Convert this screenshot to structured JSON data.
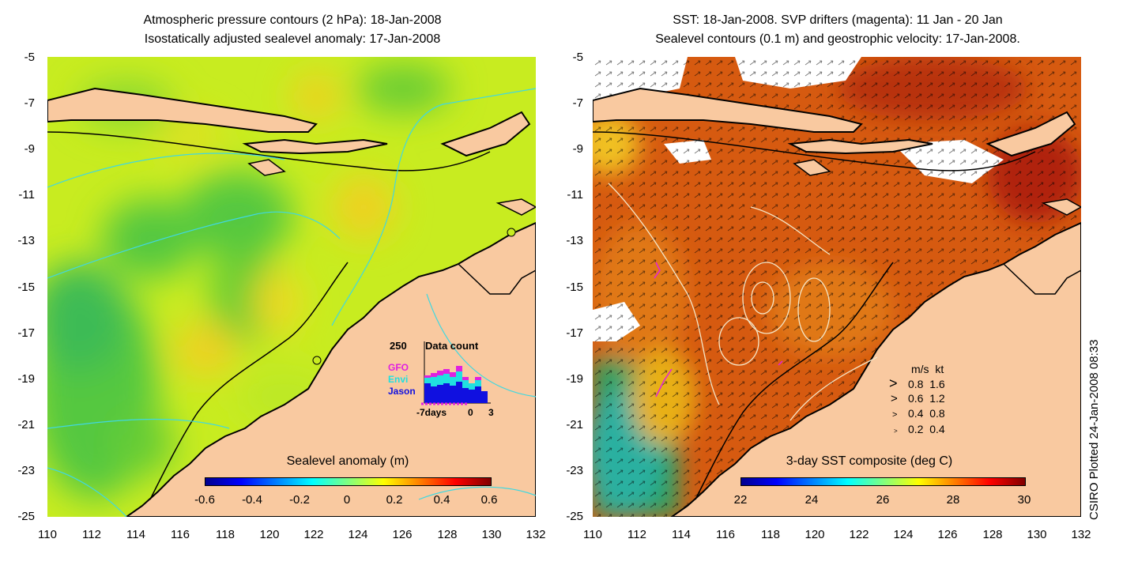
{
  "left_panel": {
    "title_line1": "Atmospheric pressure contours (2 hPa): 18-Jan-2008",
    "title_line2": "Isostatically adjusted sealevel anomaly: 17-Jan-2008",
    "colorbar_label": "Sealevel anomaly (m)",
    "colorbar_ticks": [
      "-0.6",
      "-0.4",
      "-0.2",
      "0",
      "0.2",
      "0.4",
      "0.6"
    ],
    "inset": {
      "count_label": "250",
      "title": "Data count",
      "legend": [
        {
          "name": "GFO",
          "color": "#e020e0"
        },
        {
          "name": "Envi",
          "color": "#20e0e0"
        },
        {
          "name": "Jason",
          "color": "#1010e0"
        }
      ],
      "x_labels": [
        "-7days",
        "0",
        "3"
      ]
    }
  },
  "right_panel": {
    "title_line1": "SST: 18-Jan-2008. SVP drifters (magenta): 11 Jan - 20 Jan",
    "title_line2": "Sealevel contours (0.1 m) and geostrophic velocity: 17-Jan-2008.",
    "colorbar_label": "3-day SST composite (deg C)",
    "colorbar_ticks": [
      "22",
      "24",
      "26",
      "28",
      "30"
    ],
    "velocity_legend": {
      "header_ms": "m/s",
      "header_kt": "kt",
      "rows": [
        {
          "ms": "0.8",
          "kt": "1.6"
        },
        {
          "ms": "0.6",
          "kt": "1.2"
        },
        {
          "ms": "0.4",
          "kt": "0.8"
        },
        {
          "ms": "0.2",
          "kt": "0.4"
        }
      ]
    }
  },
  "axes": {
    "y_ticks": [
      "-5",
      "-7",
      "-9",
      "-11",
      "-13",
      "-15",
      "-17",
      "-19",
      "-21",
      "-23",
      "-25"
    ],
    "x_ticks": [
      "110",
      "112",
      "114",
      "116",
      "118",
      "120",
      "122",
      "124",
      "126",
      "128",
      "130",
      "132"
    ]
  },
  "credit": "CSIRO Plotted 24-Jan-2008 08:33",
  "colors": {
    "land": "#f9c9a0",
    "sea_base_left": "#ccee22",
    "sea_base_right": "#d85a12",
    "contour_pressure": "#40d8e0",
    "drifter": "#e020e0"
  }
}
